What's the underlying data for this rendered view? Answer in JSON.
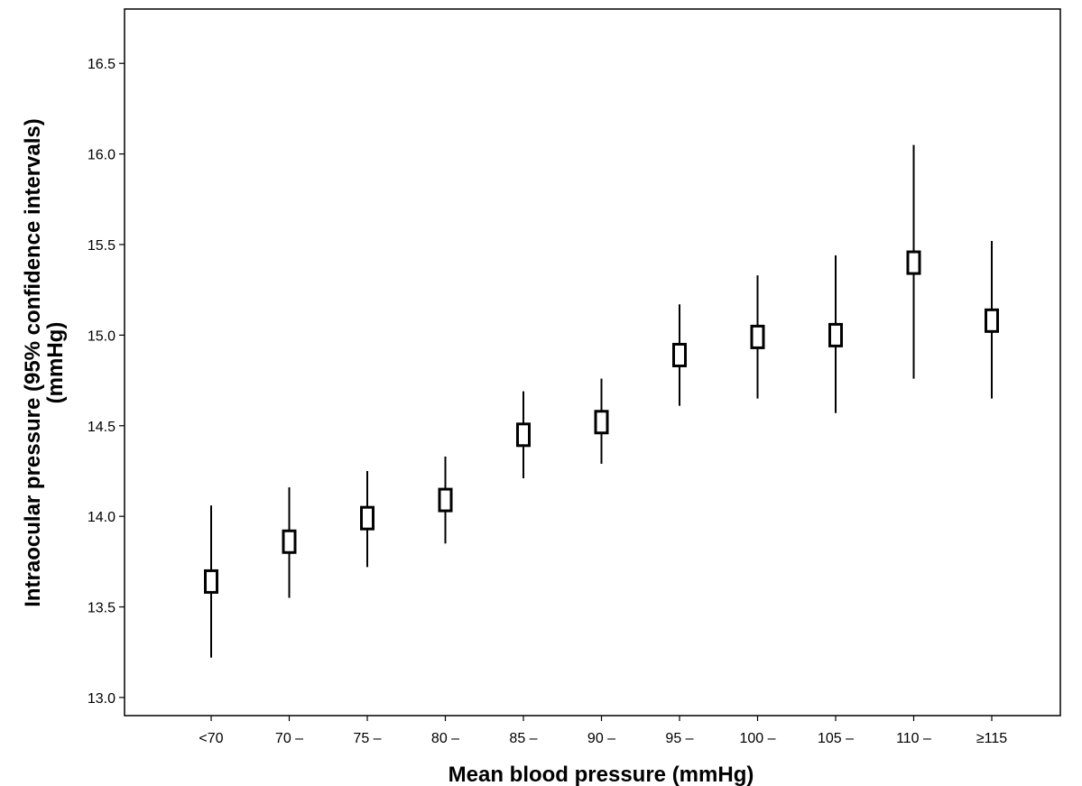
{
  "chart_data": {
    "type": "errorbar",
    "xlabel": "Mean blood pressure (mmHg)",
    "ylabel_lines": [
      "Intraocular pressure (95% confidence intervals)",
      "(mmHg)"
    ],
    "ylim": [
      12.9,
      16.8
    ],
    "yticks": [
      "13.0",
      "13.5",
      "14.0",
      "14.5",
      "15.0",
      "15.5",
      "16.0",
      "16.5"
    ],
    "categories": [
      "<70",
      "70 –",
      "75 –",
      "80 –",
      "85 –",
      "90 –",
      "95 –",
      "100 –",
      "105 –",
      "110 –",
      "≥115"
    ],
    "series": [
      {
        "mean": [
          13.64,
          13.86,
          13.99,
          14.09,
          14.45,
          14.52,
          14.89,
          14.99,
          15.0,
          15.4,
          15.08
        ],
        "lower": [
          13.22,
          13.55,
          13.72,
          13.85,
          14.21,
          14.29,
          14.61,
          14.65,
          14.57,
          14.76,
          14.65
        ],
        "upper": [
          14.06,
          14.16,
          14.25,
          14.33,
          14.69,
          14.76,
          15.17,
          15.33,
          15.44,
          16.05,
          15.52
        ]
      }
    ],
    "grid": false,
    "legend": "none"
  }
}
